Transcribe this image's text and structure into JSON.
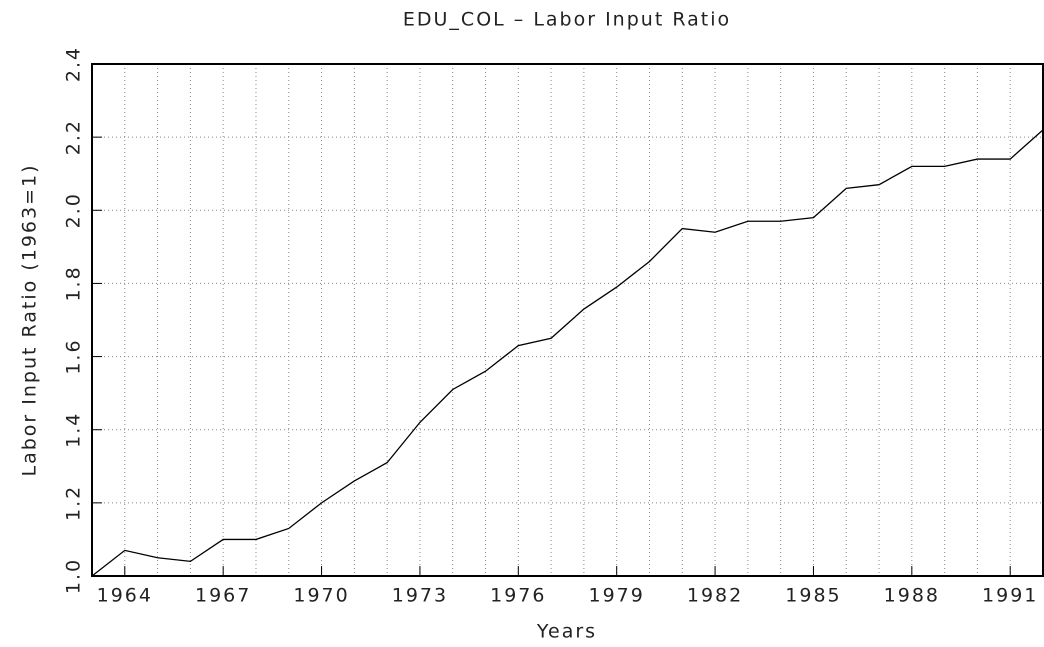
{
  "chart_data": {
    "type": "line",
    "title": "EDU_COL – Labor Input Ratio",
    "x_label": "Years",
    "y_label": "Labor Input Ratio (1963=1)",
    "x": [
      1963,
      1964,
      1965,
      1966,
      1967,
      1968,
      1969,
      1970,
      1971,
      1972,
      1973,
      1974,
      1975,
      1976,
      1977,
      1978,
      1979,
      1980,
      1981,
      1982,
      1983,
      1984,
      1985,
      1986,
      1987,
      1988,
      1989,
      1990,
      1991,
      1992
    ],
    "series": [
      {
        "name": "EDU_COL",
        "color": "#000000",
        "values": [
          1.0,
          1.07,
          1.05,
          1.04,
          1.1,
          1.1,
          1.13,
          1.2,
          1.26,
          1.31,
          1.42,
          1.51,
          1.56,
          1.63,
          1.65,
          1.73,
          1.79,
          1.86,
          1.95,
          1.94,
          1.97,
          1.97,
          1.98,
          2.06,
          2.07,
          2.12,
          2.12,
          2.14,
          2.14,
          2.22
        ]
      }
    ],
    "xlim": [
      1963,
      1992
    ],
    "xticks": [
      1964,
      1967,
      1970,
      1973,
      1976,
      1979,
      1982,
      1985,
      1988,
      1991
    ],
    "ylim": [
      1.0,
      2.4
    ],
    "yticks": [
      {
        "value": 1,
        "label": "1.0"
      },
      1.2,
      1.4,
      1.6,
      1.8,
      {
        "value": 2,
        "label": "2.0"
      },
      2.2,
      2.4
    ],
    "grid": true
  }
}
